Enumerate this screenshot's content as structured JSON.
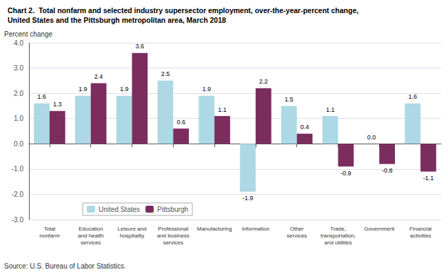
{
  "chart_data": {
    "type": "bar",
    "title": "Chart 2.  Total nonfarm and selected industry supersector employment, over-the-year-percent change,",
    "subtitle": "United States and the Pittsburgh metropolitan area, March 2018",
    "ylabel": "Percent change",
    "annotations": [
      "Source: U.S. Bureau of Labor Statistics."
    ],
    "categories": [
      "Total\nnonfarm",
      "Education\nand health\nservices",
      "Leisure and\nhospitality",
      "Professional\nand business\nservices",
      "Manufacturing",
      "Information",
      "Other\nservices",
      "Trade,\ntransportation,\nand utilities",
      "Government",
      "Financial\nactivities"
    ],
    "series": [
      {
        "name": "United States",
        "color": "#add8e6",
        "values": [
          1.6,
          1.9,
          1.9,
          2.5,
          1.9,
          -1.9,
          1.5,
          1.1,
          0.0,
          1.6
        ],
        "value_labels": [
          "1.6",
          "1.9",
          "1.9",
          "2.5",
          "1.9",
          "-1.9",
          "1.5",
          "1.1",
          "0.0",
          "1.6"
        ]
      },
      {
        "name": "Pittsburgh",
        "color": "#7b2d5e",
        "values": [
          1.3,
          2.4,
          3.6,
          0.6,
          1.1,
          2.2,
          0.4,
          -0.9,
          -0.8,
          -1.1
        ],
        "value_labels": [
          "1.3",
          "2.4",
          "3.6",
          "0.6",
          "1.1",
          "2.2",
          "0.4",
          "-0.9",
          "-0.8",
          "-1.1"
        ]
      }
    ],
    "ylim": [
      -3.0,
      4.0
    ],
    "yticks": [
      {
        "value": -3.0,
        "label": "-3.0"
      },
      {
        "value": -2.0,
        "label": "-2.0"
      },
      {
        "value": -1.0,
        "label": "-1.0"
      },
      {
        "value": 0.0,
        "label": "0.0"
      },
      {
        "value": 1.0,
        "label": "1.0"
      },
      {
        "value": 2.0,
        "label": "2.0"
      },
      {
        "value": 3.0,
        "label": "3.0"
      },
      {
        "value": 4.0,
        "label": "4.0"
      }
    ],
    "grid": true,
    "legend": "lower left",
    "data_labels": true
  }
}
